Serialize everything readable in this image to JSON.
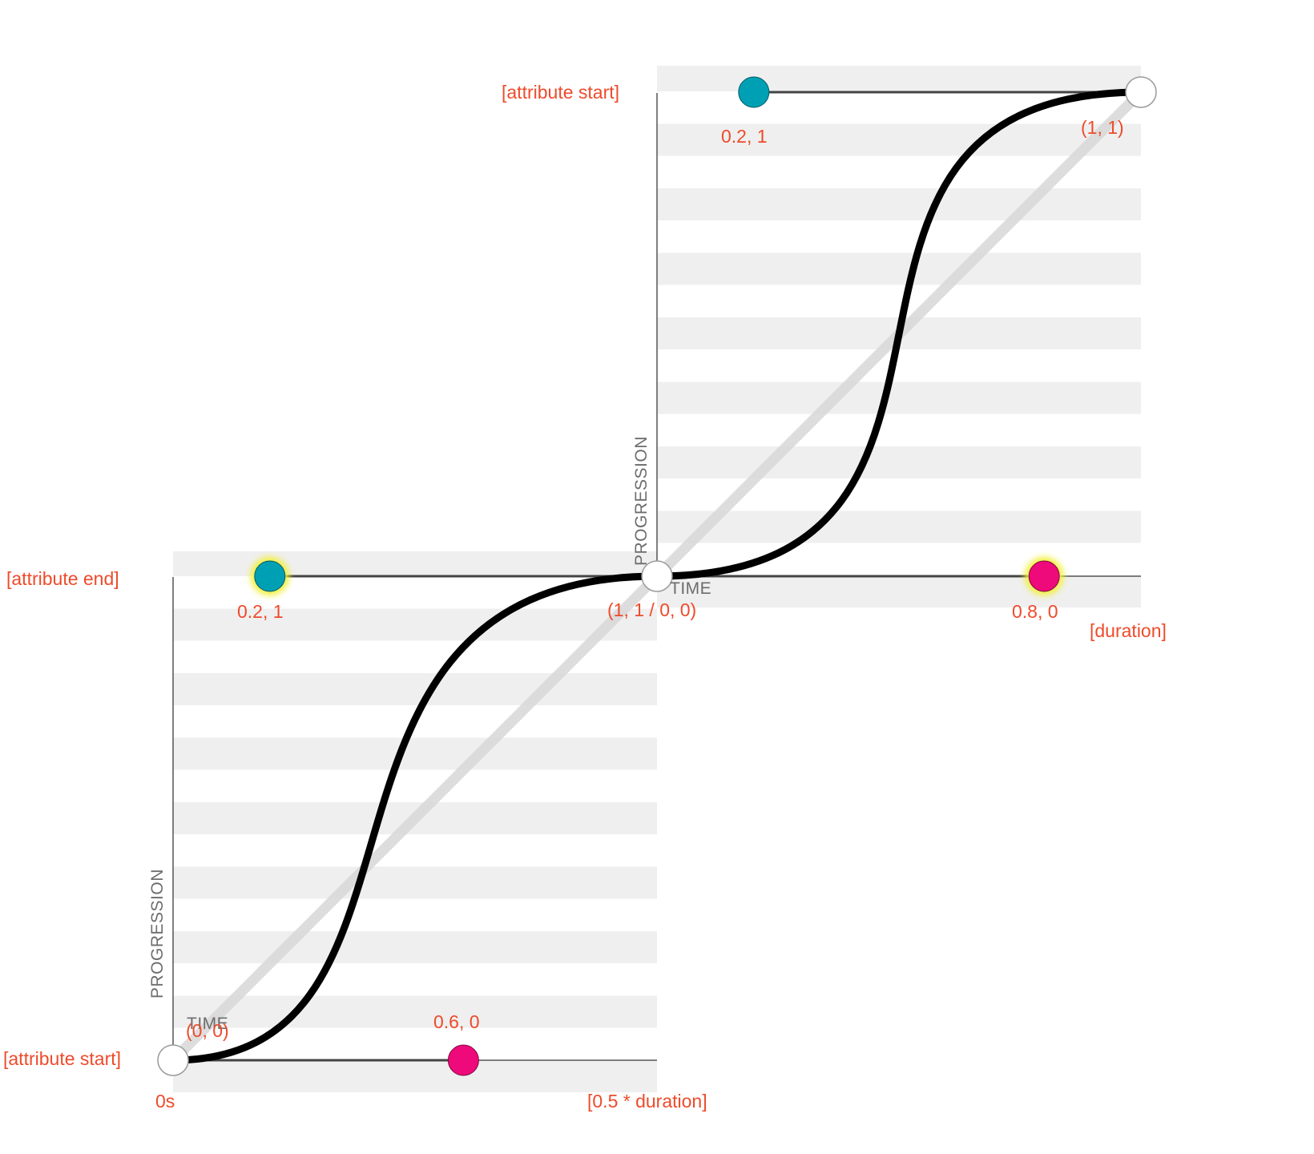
{
  "colors": {
    "label": "#ee4b2b",
    "curve": "#000000",
    "linear": "#d7d7d7",
    "stripe": "#efefef",
    "handle_start": "#00a0b4",
    "handle_end": "#ee0a7a",
    "glow": "#f2f03a",
    "endpoint_fill": "#ffffff",
    "endpoint_stroke": "#9a9a9a"
  },
  "axes": {
    "progression_label": "PROGRESSION",
    "time_label": "TIME"
  },
  "first_segment": {
    "y_top_label": "[attribute end]",
    "y_bottom_label": "[attribute start]",
    "x_start_label": "0s",
    "x_end_label": "[0.5 * duration]",
    "start_point_label": "(0, 0)",
    "end_point_label": "(1, 1 / 0, 0)",
    "p1_label": "0.6, 0",
    "p2_label": "0.2, 1",
    "p1": [
      0.6,
      0
    ],
    "p2": [
      0.2,
      1
    ]
  },
  "second_segment": {
    "y_top_label": "[attribute start]",
    "x_end_label": "[duration]",
    "end_point_label": "(1, 1)",
    "p1_label": "0.8, 0",
    "p2_label": "0.2, 1",
    "p1": [
      0.8,
      0
    ],
    "p2": [
      0.2,
      1
    ]
  }
}
